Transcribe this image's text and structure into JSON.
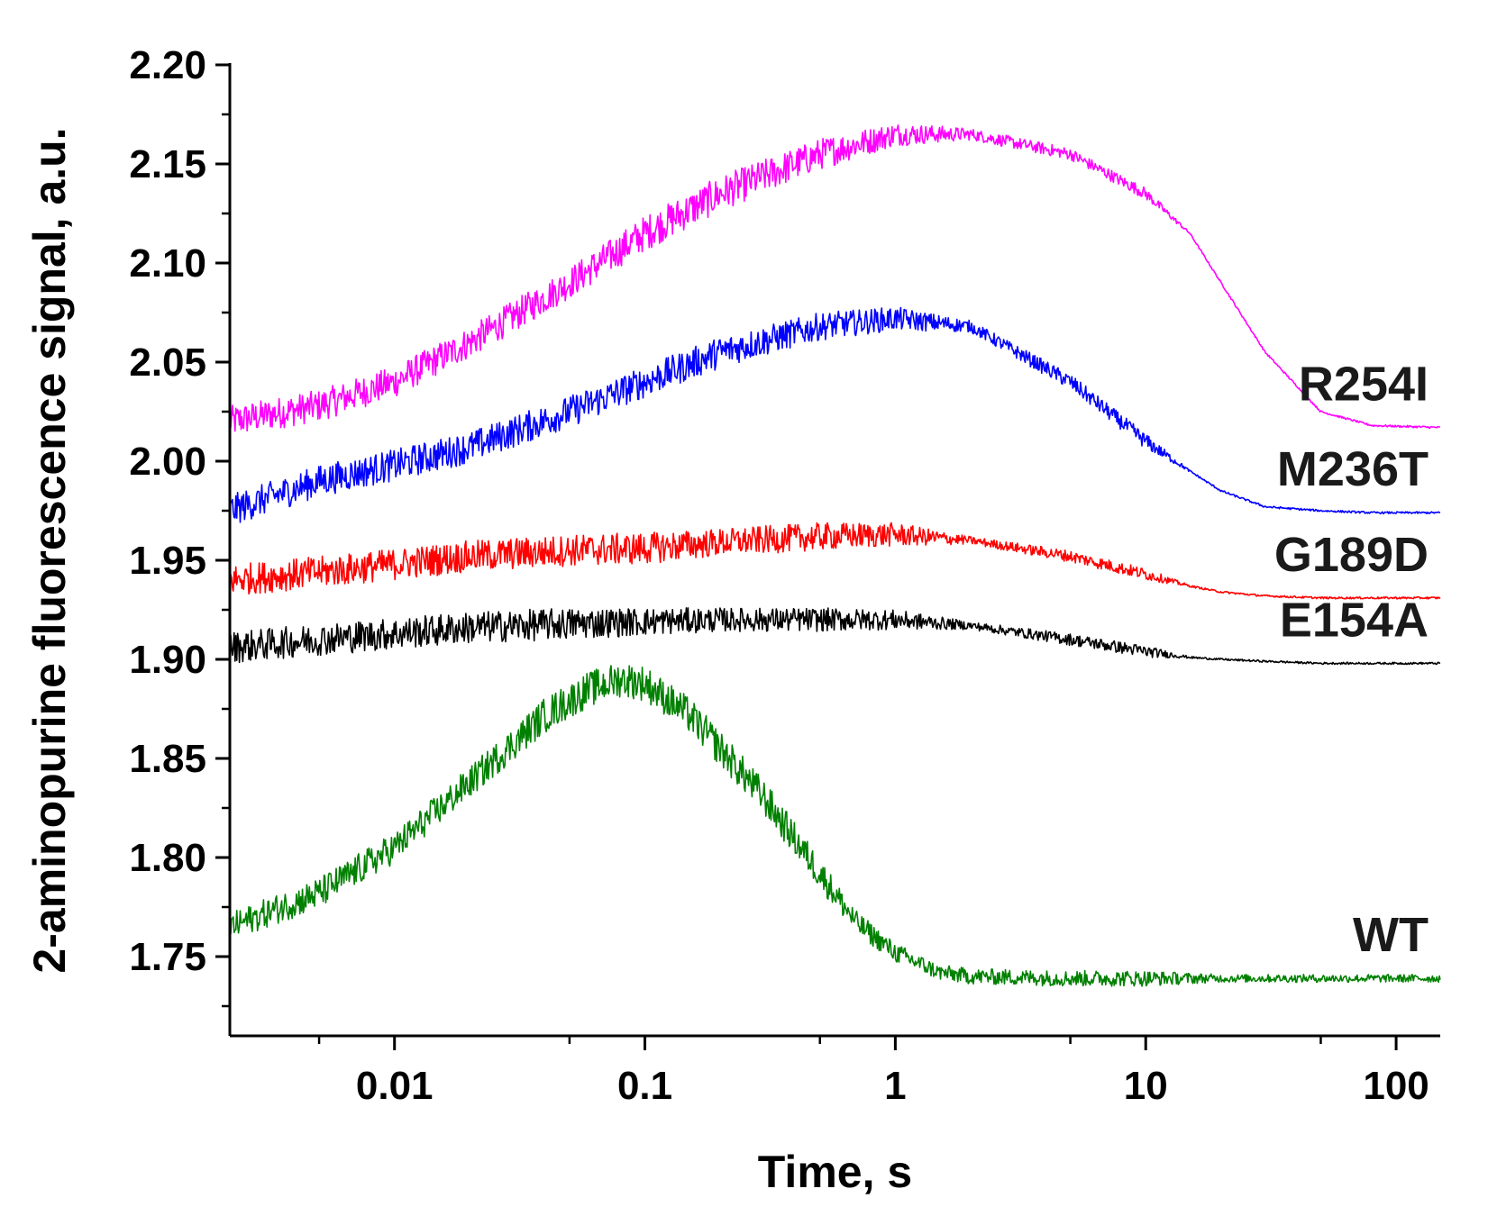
{
  "chart_data": {
    "type": "line",
    "title": "",
    "xlabel": "Time, s",
    "ylabel": "2-aminopurine fluorescence signal, a.u.",
    "xscale": "log",
    "xlim": [
      0.0022,
      150
    ],
    "ylim": [
      1.71,
      2.2
    ],
    "x_ticks": [
      0.01,
      0.1,
      1,
      10,
      100
    ],
    "x_tick_labels": [
      "0.01",
      "0.1",
      "1",
      "10",
      "100"
    ],
    "y_ticks": [
      1.75,
      1.8,
      1.85,
      1.9,
      1.95,
      2.0,
      2.05,
      2.1,
      2.15,
      2.2
    ],
    "y_tick_labels": [
      "1.75",
      "1.80",
      "1.85",
      "1.90",
      "1.95",
      "2.00",
      "2.05",
      "2.10",
      "2.15",
      "2.20"
    ],
    "grid": false,
    "series": [
      {
        "name": "R254I",
        "color": "#ff00ff",
        "x": [
          0.0022,
          0.005,
          0.01,
          0.02,
          0.05,
          0.1,
          0.2,
          0.5,
          1,
          2,
          5,
          10,
          15,
          20,
          30,
          50,
          80,
          150
        ],
        "y": [
          2.02,
          2.028,
          2.04,
          2.06,
          2.09,
          2.115,
          2.135,
          2.155,
          2.165,
          2.165,
          2.155,
          2.135,
          2.115,
          2.09,
          2.055,
          2.025,
          2.018,
          2.017
        ],
        "noise": [
          0.008,
          0.008,
          0.008,
          0.008,
          0.008,
          0.009,
          0.009,
          0.008,
          0.006,
          0.003,
          0.003,
          0.003,
          0.0005,
          0.0005,
          0.0005,
          0.0005,
          0.0005,
          0.0005
        ]
      },
      {
        "name": "M236T",
        "color": "#0000ff",
        "x": [
          0.0022,
          0.005,
          0.01,
          0.02,
          0.05,
          0.1,
          0.2,
          0.5,
          1,
          2,
          5,
          10,
          15,
          20,
          30,
          50,
          80,
          150
        ],
        "y": [
          1.975,
          1.99,
          1.998,
          2.007,
          2.025,
          2.04,
          2.055,
          2.068,
          2.072,
          2.068,
          2.04,
          2.01,
          1.995,
          1.985,
          1.977,
          1.975,
          1.974,
          1.974
        ],
        "noise": [
          0.008,
          0.008,
          0.008,
          0.008,
          0.008,
          0.008,
          0.008,
          0.007,
          0.006,
          0.003,
          0.004,
          0.004,
          0.0005,
          0.0005,
          0.0005,
          0.0005,
          0.0005,
          0.0005
        ]
      },
      {
        "name": "G189D",
        "color": "#ff0000",
        "x": [
          0.0022,
          0.005,
          0.01,
          0.02,
          0.05,
          0.1,
          0.2,
          0.5,
          1,
          2,
          5,
          10,
          15,
          20,
          30,
          50,
          80,
          150
        ],
        "y": [
          1.94,
          1.944,
          1.948,
          1.952,
          1.955,
          1.956,
          1.959,
          1.962,
          1.963,
          1.96,
          1.952,
          1.943,
          1.937,
          1.934,
          1.932,
          1.931,
          1.931,
          1.931
        ],
        "noise": [
          0.008,
          0.008,
          0.008,
          0.008,
          0.008,
          0.008,
          0.007,
          0.007,
          0.006,
          0.002,
          0.003,
          0.003,
          0.0005,
          0.0005,
          0.0005,
          0.0005,
          0.0005,
          0.0005
        ]
      },
      {
        "name": "E154A",
        "color": "#000000",
        "x": [
          0.0022,
          0.005,
          0.01,
          0.02,
          0.05,
          0.1,
          0.2,
          0.5,
          1,
          2,
          5,
          10,
          15,
          20,
          30,
          50,
          80,
          150
        ],
        "y": [
          1.906,
          1.91,
          1.913,
          1.916,
          1.918,
          1.919,
          1.92,
          1.92,
          1.92,
          1.917,
          1.91,
          1.904,
          1.901,
          1.9,
          1.899,
          1.898,
          1.898,
          1.898
        ],
        "noise": [
          0.008,
          0.008,
          0.008,
          0.008,
          0.008,
          0.007,
          0.006,
          0.006,
          0.005,
          0.002,
          0.003,
          0.003,
          0.0005,
          0.0005,
          0.0005,
          0.0005,
          0.0005,
          0.0005
        ]
      },
      {
        "name": "WT",
        "color": "#008000",
        "x": [
          0.0022,
          0.005,
          0.01,
          0.02,
          0.04,
          0.06,
          0.08,
          0.1,
          0.15,
          0.2,
          0.3,
          0.5,
          0.7,
          1,
          1.5,
          2,
          5,
          10,
          20,
          50,
          150
        ],
        "y": [
          1.765,
          1.782,
          1.805,
          1.838,
          1.872,
          1.885,
          1.89,
          1.888,
          1.872,
          1.855,
          1.83,
          1.792,
          1.767,
          1.752,
          1.742,
          1.74,
          1.739,
          1.739,
          1.739,
          1.739,
          1.739
        ],
        "noise": [
          0.007,
          0.008,
          0.008,
          0.008,
          0.009,
          0.009,
          0.009,
          0.009,
          0.009,
          0.009,
          0.009,
          0.008,
          0.006,
          0.005,
          0.004,
          0.004,
          0.004,
          0.004,
          0.002,
          0.002,
          0.002
        ]
      }
    ]
  }
}
